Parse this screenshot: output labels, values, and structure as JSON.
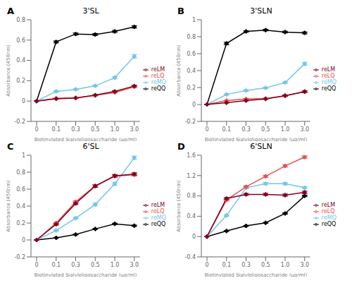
{
  "chart_data": [
    {
      "type": "line",
      "title": "3'SL",
      "annotations": [
        "A"
      ],
      "x_label": "Biotinylated Sialyloligosaccharide (μg/ml)",
      "y_label": "Absorbance (450nm)",
      "categories": [
        "0",
        "0.1",
        "0.3",
        "0.5",
        "1.0",
        "3.0"
      ],
      "ylim": [
        -0.2,
        0.8
      ],
      "yticks": [
        -0.2,
        0,
        0.2,
        0.4,
        0.6,
        0.8
      ],
      "grid": false,
      "legend": "right",
      "marker": "diamond",
      "series": [
        {
          "name": "reQQ",
          "color": "#000000",
          "values": [
            0.0,
            0.582,
            0.66,
            0.655,
            0.685,
            0.73
          ],
          "yerr": [
            0.003,
            0.01,
            0.01,
            0.01,
            0.01,
            0.012
          ]
        },
        {
          "name": "reMQ",
          "color": "#74C6E8",
          "values": [
            0.0,
            0.095,
            0.115,
            0.15,
            0.23,
            0.44
          ],
          "yerr": [
            0.003,
            0.007,
            0.007,
            0.008,
            0.012,
            0.018
          ]
        },
        {
          "name": "reLQ",
          "color": "#E85050",
          "values": [
            0.0,
            0.028,
            0.032,
            0.055,
            0.085,
            0.14
          ],
          "yerr": [
            0.002,
            0.003,
            0.003,
            0.005,
            0.006,
            0.008
          ]
        },
        {
          "name": "reLM",
          "color": "#800020",
          "values": [
            0.0,
            0.022,
            0.03,
            0.058,
            0.095,
            0.148
          ],
          "yerr": [
            0.002,
            0.003,
            0.003,
            0.005,
            0.006,
            0.008
          ]
        }
      ]
    },
    {
      "type": "line",
      "title": "3'SLN",
      "annotations": [
        "B"
      ],
      "x_label": "Biotinylated Sialyloligosaccharide (μg/ml)",
      "y_label": "Absorbance (450nm)",
      "categories": [
        "0",
        "0.1",
        "0.3",
        "0.5",
        "1.0",
        "3.0"
      ],
      "ylim": [
        -0.2,
        1.0
      ],
      "yticks": [
        -0.2,
        0,
        0.2,
        0.4,
        0.6,
        0.8,
        1
      ],
      "grid": false,
      "legend": "right",
      "marker": "diamond",
      "series": [
        {
          "name": "reQQ",
          "color": "#000000",
          "values": [
            0.0,
            0.72,
            0.862,
            0.878,
            0.855,
            0.845
          ],
          "yerr": [
            0.003,
            0.015,
            0.01,
            0.01,
            0.01,
            0.012
          ]
        },
        {
          "name": "reMQ",
          "color": "#74C6E8",
          "values": [
            0.0,
            0.118,
            0.165,
            0.195,
            0.258,
            0.48
          ],
          "yerr": [
            0.003,
            0.007,
            0.008,
            0.008,
            0.01,
            0.018
          ]
        },
        {
          "name": "reLQ",
          "color": "#E85050",
          "values": [
            0.0,
            0.045,
            0.065,
            0.07,
            0.1,
            0.155
          ],
          "yerr": [
            0.002,
            0.005,
            0.005,
            0.005,
            0.008,
            0.01
          ]
        },
        {
          "name": "reLM",
          "color": "#800020",
          "values": [
            0.0,
            0.02,
            0.045,
            0.065,
            0.105,
            0.15
          ],
          "yerr": [
            0.002,
            0.003,
            0.004,
            0.005,
            0.008,
            0.01
          ]
        }
      ]
    },
    {
      "type": "line",
      "title": "6'SL",
      "annotations": [
        "C"
      ],
      "x_label": "Biotinylated Sialyloligosaccharide (μg/ml)",
      "y_label": "Absorbance (450nm)",
      "categories": [
        "0",
        "0.1",
        "0.3",
        "0.5",
        "1.0",
        "3.0"
      ],
      "ylim": [
        -0.2,
        1.0
      ],
      "yticks": [
        -0.2,
        0,
        0.2,
        0.4,
        0.6,
        0.8,
        1
      ],
      "grid": false,
      "legend": "right",
      "marker": "diamond",
      "series": [
        {
          "name": "reQQ",
          "color": "#000000",
          "values": [
            0.0,
            0.025,
            0.065,
            0.13,
            0.19,
            0.168
          ],
          "yerr": [
            0.002,
            0.003,
            0.005,
            0.006,
            0.008,
            0.008
          ]
        },
        {
          "name": "reMQ",
          "color": "#74C6E8",
          "values": [
            0.0,
            0.112,
            0.258,
            0.418,
            0.662,
            0.97
          ],
          "yerr": [
            0.003,
            0.007,
            0.01,
            0.015,
            0.018,
            0.02
          ]
        },
        {
          "name": "reLQ",
          "color": "#E85050",
          "values": [
            0.0,
            0.2,
            0.45,
            0.64,
            0.752,
            0.77
          ],
          "yerr": [
            0.003,
            0.01,
            0.015,
            0.015,
            0.015,
            0.015
          ]
        },
        {
          "name": "reLM",
          "color": "#800020",
          "values": [
            0.0,
            0.185,
            0.432,
            0.635,
            0.758,
            0.778
          ],
          "yerr": [
            0.003,
            0.01,
            0.015,
            0.015,
            0.015,
            0.015
          ]
        }
      ]
    },
    {
      "type": "line",
      "title": "6'SLN",
      "annotations": [
        "D"
      ],
      "x_label": "Biotinylated Sialyloligosaccharide (μg/ml)",
      "y_label": "Absorbance (450nm)",
      "categories": [
        "0",
        "0.1",
        "0.3",
        "0.5",
        "1.0",
        "3.0"
      ],
      "ylim": [
        -0.4,
        1.6
      ],
      "yticks": [
        -0.4,
        0,
        0.4,
        0.8,
        1.2,
        1.6
      ],
      "grid": false,
      "legend": "right",
      "marker": "diamond",
      "series": [
        {
          "name": "reQQ",
          "color": "#000000",
          "values": [
            0.0,
            0.11,
            0.21,
            0.27,
            0.455,
            0.8
          ],
          "yerr": [
            0.003,
            0.008,
            0.01,
            0.01,
            0.012,
            0.015
          ]
        },
        {
          "name": "reMQ",
          "color": "#74C6E8",
          "values": [
            0.0,
            0.415,
            0.96,
            1.04,
            1.04,
            0.96
          ],
          "yerr": [
            0.003,
            0.018,
            0.02,
            0.022,
            0.022,
            0.022
          ]
        },
        {
          "name": "reLQ",
          "color": "#E85050",
          "values": [
            0.0,
            0.72,
            0.98,
            1.185,
            1.39,
            1.565
          ],
          "yerr": [
            0.003,
            0.018,
            0.02,
            0.022,
            0.025,
            0.025
          ]
        },
        {
          "name": "reLM",
          "color": "#800020",
          "values": [
            0.0,
            0.75,
            0.83,
            0.83,
            0.815,
            0.87
          ],
          "yerr": [
            0.003,
            0.018,
            0.02,
            0.022,
            0.022,
            0.025
          ]
        }
      ]
    }
  ]
}
